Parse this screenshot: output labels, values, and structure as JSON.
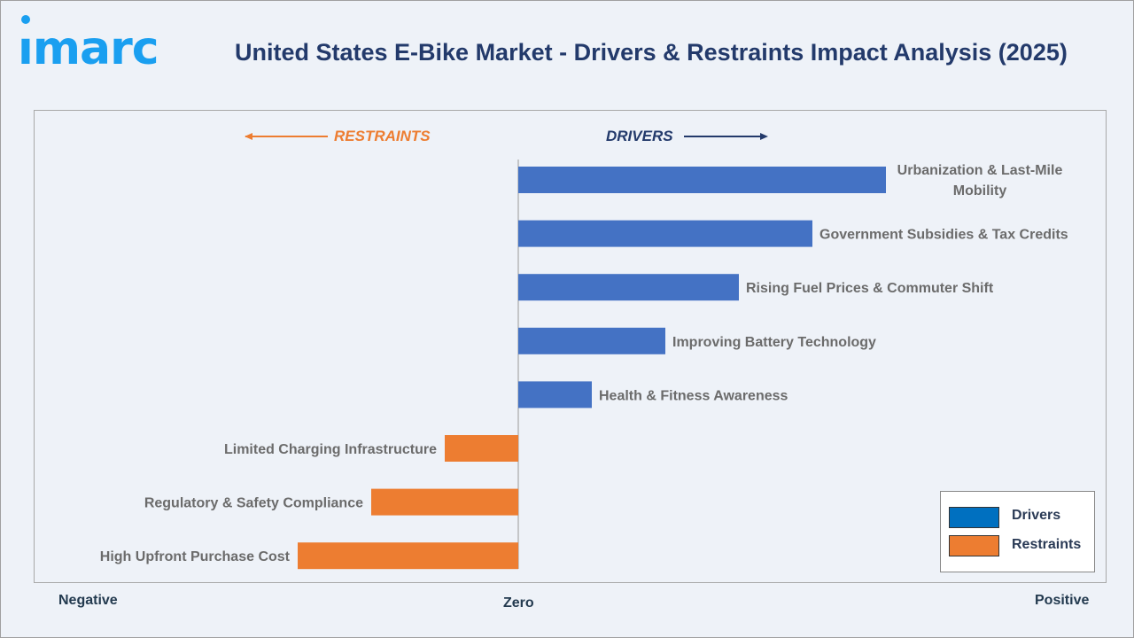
{
  "logo_text": "imarc",
  "title": "United States E-Bike Market - Drivers & Restraints Impact Analysis (2025)",
  "chart_data": {
    "type": "bar",
    "orientation": "horizontal",
    "title": "United States E-Bike Market - Drivers & Restraints Impact Analysis (2025)",
    "categories": [
      "Urbanization & Last-Mile Mobility",
      "Government Subsidies & Tax Credits",
      "Rising Fuel Prices & Commuter Shift",
      "Improving Battery Technology",
      "Health & Fitness Awareness",
      "Limited Charging Infrastructure",
      "Regulatory & Safety Compliance",
      "High Upfront Purchase Cost"
    ],
    "values": [
      5,
      4,
      3,
      2,
      1,
      -1,
      -2,
      -3
    ],
    "series_type": [
      "Drivers",
      "Drivers",
      "Drivers",
      "Drivers",
      "Drivers",
      "Restraints",
      "Restraints",
      "Restraints"
    ],
    "xlim": [
      -6.6,
      7.9
    ],
    "x_tick_labels": {
      "negative": "Negative",
      "zero": "Zero",
      "positive": "Positive"
    },
    "direction_labels": {
      "restraints": "RESTRAINTS",
      "drivers": "DRIVERS"
    },
    "legend": [
      {
        "name": "Drivers",
        "color": "#0070c0"
      },
      {
        "name": "Restraints",
        "color": "#ed7d31"
      }
    ],
    "legend_position": "bottom-right",
    "colors": {
      "drivers_bar": "#4472c4",
      "restraints_bar": "#ed7d31",
      "restraints_text": "#ed7d31",
      "drivers_text": "#233a6b"
    },
    "grid": false
  }
}
